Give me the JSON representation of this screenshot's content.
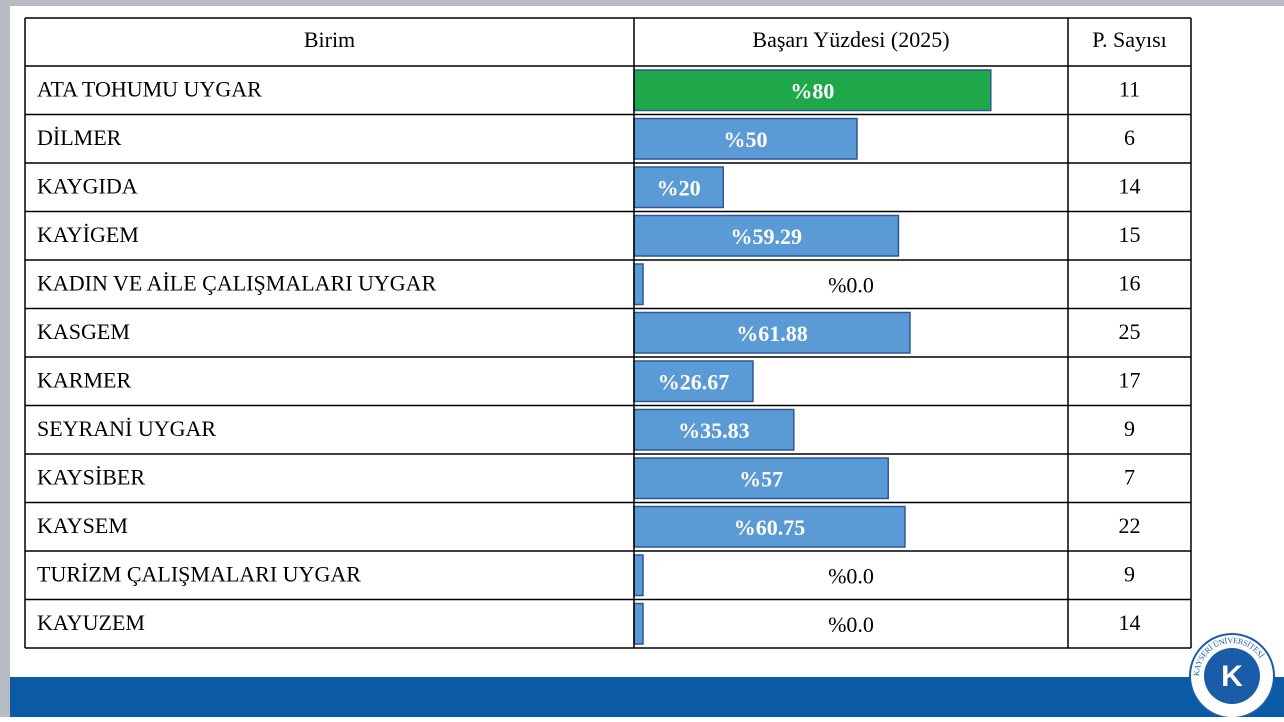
{
  "table": {
    "columns": [
      "Birim",
      "Başarı Yüzdesi (2025)",
      "P. Sayısı"
    ],
    "rows": [
      {
        "unit": "ATA TOHUMU UYGAR",
        "value": 80,
        "value_label": "%80",
        "color": "#1fa84a",
        "count": 11
      },
      {
        "unit": "DİLMER",
        "value": 50,
        "value_label": "%50",
        "color": "#5b9bd5",
        "count": 6
      },
      {
        "unit": "KAYGIDA",
        "value": 20,
        "value_label": "%20",
        "color": "#5b9bd5",
        "count": 14
      },
      {
        "unit": "KAYİGEM",
        "value": 59.29,
        "value_label": "%59.29",
        "color": "#5b9bd5",
        "count": 15
      },
      {
        "unit": "KADIN VE AİLE ÇALIŞMALARI UYGAR",
        "value": 0,
        "value_label": "%0.0",
        "color": "#5b9bd5",
        "count": 16
      },
      {
        "unit": "KASGEM",
        "value": 61.88,
        "value_label": "%61.88",
        "color": "#5b9bd5",
        "count": 25
      },
      {
        "unit": "KARMER",
        "value": 26.67,
        "value_label": "%26.67",
        "color": "#5b9bd5",
        "count": 17
      },
      {
        "unit": "SEYRANİ UYGAR",
        "value": 35.83,
        "value_label": "%35.83",
        "color": "#5b9bd5",
        "count": 9
      },
      {
        "unit": "KAYSİBER",
        "value": 57,
        "value_label": "%57",
        "color": "#5b9bd5",
        "count": 7
      },
      {
        "unit": "KAYSEM",
        "value": 60.75,
        "value_label": "%60.75",
        "color": "#5b9bd5",
        "count": 22
      },
      {
        "unit": "TURİZM ÇALIŞMALARI UYGAR",
        "value": 0,
        "value_label": "%0.0",
        "color": "#5b9bd5",
        "count": 9
      },
      {
        "unit": "KAYUZEM",
        "value": 0,
        "value_label": "%0.0",
        "color": "#5b9bd5",
        "count": 14
      }
    ]
  },
  "logo": {
    "text": "KAYSERİ ÜNİVERSİTESİ"
  }
}
